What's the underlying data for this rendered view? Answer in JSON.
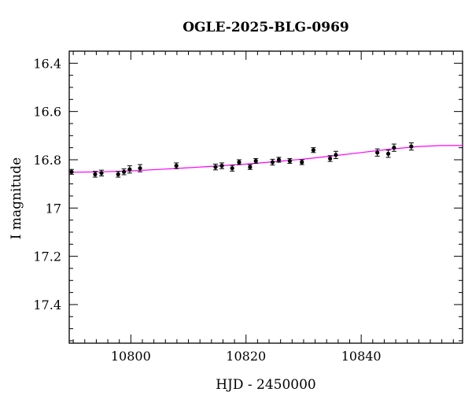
{
  "chart_data": {
    "type": "scatter",
    "title": "OGLE-2025-BLG-0969",
    "xlabel": "HJD - 2450000",
    "ylabel": "I magnitude",
    "xlim": [
      10789.3,
      10857.6
    ],
    "ylim": [
      17.56,
      16.35
    ],
    "y_inverted": true,
    "x_ticks": [
      10800,
      10820,
      10840
    ],
    "x_minor_step": 2,
    "y_ticks": [
      16.4,
      16.6,
      16.8,
      17,
      17.2,
      17.4
    ],
    "y_tick_labels": [
      "16.4",
      "16.6",
      "16.8",
      "17",
      "17.2",
      "17.4"
    ],
    "y_minor_step": 0.05,
    "grid": false,
    "colors": {
      "points": "#000000",
      "model": "#ff00ff"
    },
    "series": [
      {
        "kind": "points",
        "x": [
          10789.7,
          10793.8,
          10794.9,
          10797.8,
          10798.8,
          10799.8,
          10801.6,
          10807.9,
          10814.7,
          10815.8,
          10817.6,
          10818.8,
          10820.7,
          10821.7,
          10824.6,
          10825.7,
          10827.6,
          10829.7,
          10831.7,
          10834.6,
          10835.6,
          10842.8,
          10844.7,
          10845.7,
          10848.7
        ],
        "y": [
          16.85,
          16.86,
          16.855,
          16.86,
          16.85,
          16.84,
          16.835,
          16.825,
          16.83,
          16.825,
          16.835,
          16.81,
          16.83,
          16.805,
          16.81,
          16.8,
          16.805,
          16.81,
          16.76,
          16.795,
          16.78,
          16.77,
          16.775,
          16.75,
          16.745
        ],
        "yerr": [
          0.01,
          0.012,
          0.012,
          0.012,
          0.012,
          0.015,
          0.015,
          0.012,
          0.012,
          0.012,
          0.012,
          0.01,
          0.01,
          0.01,
          0.012,
          0.01,
          0.01,
          0.01,
          0.01,
          0.012,
          0.015,
          0.015,
          0.015,
          0.015,
          0.015
        ]
      },
      {
        "kind": "model-curve",
        "x": [
          10789.3,
          10795,
          10800,
          10805,
          10810,
          10815,
          10820,
          10825,
          10830,
          10835,
          10840,
          10845,
          10850,
          10854,
          10857.6
        ],
        "y": [
          16.852,
          16.85,
          16.846,
          16.84,
          16.833,
          16.826,
          16.818,
          16.808,
          16.797,
          16.784,
          16.77,
          16.756,
          16.745,
          16.741,
          16.741
        ]
      }
    ]
  }
}
